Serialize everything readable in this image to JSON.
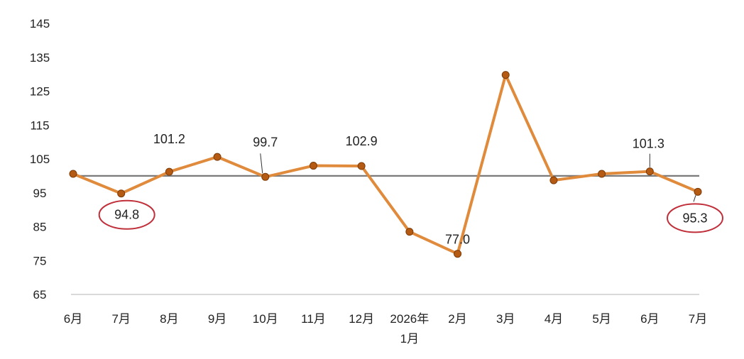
{
  "chart_data": {
    "type": "line",
    "x_labels": [
      {
        "line1": "6月",
        "line2": ""
      },
      {
        "line1": "7月",
        "line2": ""
      },
      {
        "line1": "8月",
        "line2": ""
      },
      {
        "line1": "9月",
        "line2": ""
      },
      {
        "line1": "10月",
        "line2": ""
      },
      {
        "line1": "11月",
        "line2": ""
      },
      {
        "line1": "12月",
        "line2": ""
      },
      {
        "line1": "2026年",
        "line2": "1月"
      },
      {
        "line1": "2月",
        "line2": ""
      },
      {
        "line1": "3月",
        "line2": ""
      },
      {
        "line1": "4月",
        "line2": ""
      },
      {
        "line1": "5月",
        "line2": ""
      },
      {
        "line1": "6月",
        "line2": ""
      },
      {
        "line1": "7月",
        "line2": ""
      }
    ],
    "values": [
      100.6,
      94.8,
      101.2,
      105.6,
      99.7,
      103.0,
      102.9,
      83.5,
      77.0,
      129.8,
      98.7,
      100.6,
      101.3,
      95.3
    ],
    "ylim": [
      65,
      145
    ],
    "yticks": [
      65,
      75,
      85,
      95,
      105,
      115,
      125,
      135,
      145
    ],
    "reference_line": 100,
    "data_labels": [
      {
        "index": 1,
        "text": "94.8",
        "circled": true
      },
      {
        "index": 2,
        "text": "101.2",
        "circled": false
      },
      {
        "index": 4,
        "text": "99.7",
        "circled": false
      },
      {
        "index": 6,
        "text": "102.9",
        "circled": false
      },
      {
        "index": 8,
        "text": "77.0",
        "circled": false
      },
      {
        "index": 12,
        "text": "101.3",
        "circled": false
      },
      {
        "index": 13,
        "text": "95.3",
        "circled": true
      }
    ],
    "title": "",
    "xlabel": "",
    "ylabel": "",
    "grid": false,
    "legend": "none",
    "colors": {
      "line": "#e08a3c",
      "marker": "#b55a12",
      "reference": "#7a7a7a",
      "baseline": "#d9d9d9",
      "circle": "#c0303a"
    }
  }
}
